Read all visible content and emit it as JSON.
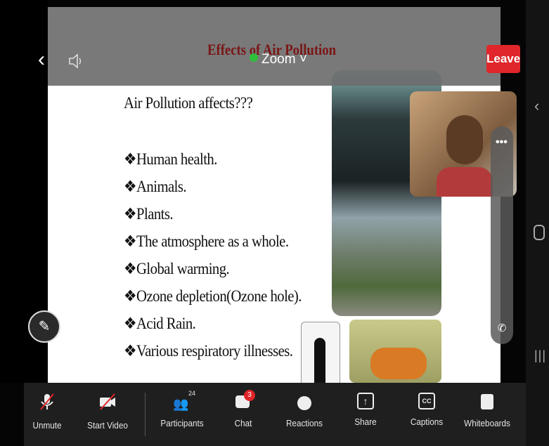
{
  "top_bar": {
    "slide_title": "Effects of Air Pollution",
    "app_name": "Zoom",
    "leave": "Leave"
  },
  "slide": {
    "heading": "Air Pollution affects???",
    "items": [
      "❖Human health.",
      "❖Animals.",
      "❖Plants.",
      "❖The atmosphere as a whole.",
      "❖Global warming.",
      "❖Ozone depletion(Ozone hole).",
      "❖Acid Rain.",
      "❖Various respiratory illnesses."
    ]
  },
  "toolbar": {
    "unmute": "Unmute",
    "start_video": "Start Video",
    "participants": "Participants",
    "participants_count": 24,
    "chat": "Chat",
    "chat_badge": 3,
    "reactions": "Reactions",
    "share": "Share",
    "captions": "Captions",
    "captions_icon": "CC",
    "whiteboards": "Whiteboards"
  }
}
